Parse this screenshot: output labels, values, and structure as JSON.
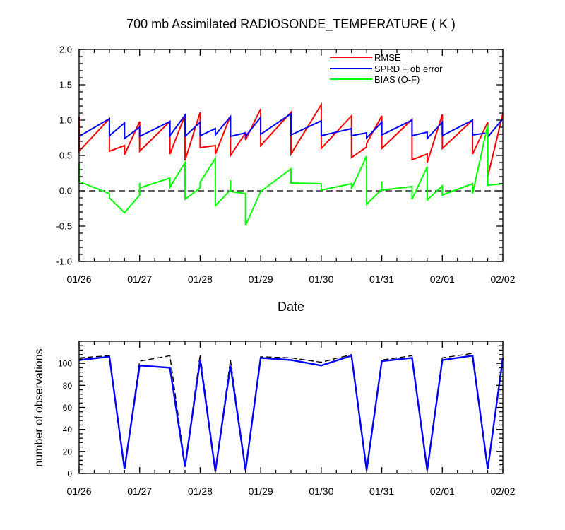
{
  "chart_data": [
    {
      "type": "line",
      "title": "700 mb Assimilated RADIOSONDE_TEMPERATURE ( K )",
      "xlabel": "Date",
      "ylabel": "",
      "x_ticks": [
        "01/26",
        "01/27",
        "01/28",
        "01/29",
        "01/30",
        "01/31",
        "02/01",
        "02/02"
      ],
      "xlim": [
        0,
        7
      ],
      "ylim": [
        -1.0,
        2.0
      ],
      "y_ticks": [
        "2.0",
        "1.5",
        "1.0",
        "0.5",
        "0.0",
        "-0.5",
        "-1.0"
      ],
      "y_tick_values": [
        2.0,
        1.5,
        1.0,
        0.5,
        0.0,
        -0.5,
        -1.0
      ],
      "zero_line": true,
      "legend_position": "top-right",
      "series": [
        {
          "name": "RMSE",
          "color": "#ff0000",
          "points": [
            [
              0.0,
              1.05
            ],
            [
              0.0,
              0.56
            ],
            [
              0.5,
              1.02
            ],
            [
              0.5,
              0.56
            ],
            [
              0.75,
              0.64
            ],
            [
              0.75,
              0.51
            ],
            [
              1.0,
              0.98
            ],
            [
              1.0,
              0.56
            ],
            [
              1.5,
              0.98
            ],
            [
              1.5,
              0.52
            ],
            [
              1.75,
              1.07
            ],
            [
              1.75,
              0.43
            ],
            [
              2.0,
              1.11
            ],
            [
              2.0,
              0.61
            ],
            [
              2.25,
              0.64
            ],
            [
              2.25,
              0.52
            ],
            [
              2.5,
              1.06
            ],
            [
              2.5,
              0.5
            ],
            [
              2.75,
              0.82
            ],
            [
              2.75,
              0.72
            ],
            [
              3.0,
              1.16
            ],
            [
              3.0,
              0.64
            ],
            [
              3.5,
              1.11
            ],
            [
              3.5,
              0.52
            ],
            [
              4.0,
              1.22
            ],
            [
              4.0,
              0.6
            ],
            [
              4.5,
              1.06
            ],
            [
              4.5,
              0.47
            ],
            [
              4.75,
              0.62
            ],
            [
              4.75,
              0.67
            ],
            [
              5.0,
              1.06
            ],
            [
              5.0,
              0.6
            ],
            [
              5.5,
              1.01
            ],
            [
              5.5,
              0.44
            ],
            [
              5.75,
              0.52
            ],
            [
              5.75,
              0.4
            ],
            [
              6.0,
              1.08
            ],
            [
              6.0,
              0.6
            ],
            [
              6.5,
              1.0
            ],
            [
              6.5,
              0.52
            ],
            [
              6.75,
              0.97
            ],
            [
              6.75,
              0.2
            ],
            [
              7.0,
              1.09
            ]
          ]
        },
        {
          "name": "SPRD + ob error",
          "color": "#0000ff",
          "points": [
            [
              0.0,
              0.77
            ],
            [
              0.5,
              1.02
            ],
            [
              0.5,
              0.78
            ],
            [
              0.75,
              0.96
            ],
            [
              0.75,
              0.74
            ],
            [
              1.0,
              0.9
            ],
            [
              1.0,
              0.77
            ],
            [
              1.5,
              0.98
            ],
            [
              1.5,
              0.78
            ],
            [
              1.75,
              1.07
            ],
            [
              1.75,
              0.77
            ],
            [
              2.0,
              0.97
            ],
            [
              2.0,
              0.78
            ],
            [
              2.25,
              0.88
            ],
            [
              2.25,
              0.79
            ],
            [
              2.5,
              1.05
            ],
            [
              2.5,
              0.77
            ],
            [
              2.75,
              0.82
            ],
            [
              2.75,
              0.77
            ],
            [
              3.0,
              1.04
            ],
            [
              3.0,
              0.8
            ],
            [
              3.5,
              1.09
            ],
            [
              3.5,
              0.79
            ],
            [
              4.0,
              0.99
            ],
            [
              4.0,
              0.78
            ],
            [
              4.5,
              0.88
            ],
            [
              4.5,
              0.78
            ],
            [
              4.75,
              0.82
            ],
            [
              4.75,
              0.75
            ],
            [
              5.0,
              0.97
            ],
            [
              5.0,
              0.79
            ],
            [
              5.5,
              1.0
            ],
            [
              5.5,
              0.78
            ],
            [
              5.75,
              0.83
            ],
            [
              5.75,
              0.74
            ],
            [
              6.0,
              0.97
            ],
            [
              6.0,
              0.78
            ],
            [
              6.5,
              1.0
            ],
            [
              6.5,
              0.79
            ],
            [
              6.75,
              0.82
            ],
            [
              6.75,
              0.76
            ],
            [
              7.0,
              1.02
            ]
          ]
        },
        {
          "name": "BIAS (O-F)",
          "color": "#00ff00",
          "points": [
            [
              0.0,
              0.4
            ],
            [
              0.0,
              0.13
            ],
            [
              0.5,
              -0.04
            ],
            [
              0.5,
              -0.1
            ],
            [
              0.75,
              -0.31
            ],
            [
              1.0,
              -0.06
            ],
            [
              1.0,
              0.11
            ],
            [
              1.0,
              0.04
            ],
            [
              1.5,
              0.18
            ],
            [
              1.5,
              0.05
            ],
            [
              1.75,
              0.4
            ],
            [
              1.75,
              -0.12
            ],
            [
              2.0,
              0.04
            ],
            [
              2.0,
              0.12
            ],
            [
              2.25,
              0.46
            ],
            [
              2.25,
              -0.21
            ],
            [
              2.5,
              0.01
            ],
            [
              2.5,
              0.15
            ],
            [
              2.5,
              -0.01
            ],
            [
              2.75,
              -0.04
            ],
            [
              2.75,
              -0.49
            ],
            [
              3.0,
              -0.01
            ],
            [
              3.5,
              0.31
            ],
            [
              3.5,
              0.11
            ],
            [
              4.0,
              0.1
            ],
            [
              4.0,
              0.01
            ],
            [
              4.5,
              0.1
            ],
            [
              4.5,
              0.03
            ],
            [
              4.75,
              0.49
            ],
            [
              4.75,
              -0.19
            ],
            [
              5.0,
              0.02
            ],
            [
              5.0,
              0.13
            ],
            [
              5.0,
              0.01
            ],
            [
              5.5,
              0.06
            ],
            [
              5.5,
              -0.12
            ],
            [
              5.75,
              0.34
            ],
            [
              5.75,
              -0.13
            ],
            [
              6.0,
              0.07
            ],
            [
              6.0,
              -0.06
            ],
            [
              6.5,
              0.1
            ],
            [
              6.5,
              -0.04
            ],
            [
              6.75,
              0.93
            ],
            [
              6.75,
              0.08
            ],
            [
              7.0,
              0.1
            ]
          ]
        }
      ]
    },
    {
      "type": "line",
      "title": "",
      "xlabel": "",
      "ylabel": "number of observations",
      "x_ticks": [
        "01/26",
        "01/27",
        "01/28",
        "01/29",
        "01/30",
        "01/31",
        "02/01",
        "02/02"
      ],
      "xlim": [
        0,
        7
      ],
      "ylim": [
        0,
        120
      ],
      "y_ticks": [
        "100",
        "80",
        "60",
        "40",
        "20",
        "0"
      ],
      "y_tick_values": [
        100,
        80,
        60,
        40,
        20,
        0
      ],
      "series": [
        {
          "name": "",
          "style": "dashed",
          "color": "#000000",
          "points": [
            [
              0.0,
              105
            ],
            [
              0.5,
              107
            ],
            [
              0.75,
              4
            ],
            [
              1.0,
              102
            ],
            [
              1.5,
              107
            ],
            [
              1.75,
              7
            ],
            [
              2.0,
              108
            ],
            [
              2.25,
              2
            ],
            [
              2.5,
              103
            ],
            [
              2.75,
              4
            ],
            [
              3.0,
              106
            ],
            [
              3.5,
              105
            ],
            [
              4.0,
              101
            ],
            [
              4.5,
              108
            ],
            [
              4.75,
              4
            ],
            [
              5.0,
              103
            ],
            [
              5.5,
              107
            ],
            [
              5.75,
              4
            ],
            [
              6.0,
              105
            ],
            [
              6.5,
              109
            ],
            [
              6.75,
              4
            ],
            [
              7.0,
              105
            ]
          ]
        },
        {
          "name": "",
          "style": "solid",
          "color": "#0000ff",
          "points": [
            [
              0.0,
              103
            ],
            [
              0.5,
              106
            ],
            [
              0.75,
              4
            ],
            [
              1.0,
              98
            ],
            [
              1.5,
              96
            ],
            [
              1.75,
              6
            ],
            [
              2.0,
              103
            ],
            [
              2.25,
              2
            ],
            [
              2.5,
              98
            ],
            [
              2.75,
              3
            ],
            [
              3.0,
              105
            ],
            [
              3.5,
              103
            ],
            [
              4.0,
              98
            ],
            [
              4.5,
              107
            ],
            [
              4.75,
              3
            ],
            [
              5.0,
              102
            ],
            [
              5.5,
              105
            ],
            [
              5.75,
              3
            ],
            [
              6.0,
              103
            ],
            [
              6.5,
              107
            ],
            [
              6.75,
              4
            ],
            [
              7.0,
              105
            ]
          ]
        }
      ]
    }
  ]
}
